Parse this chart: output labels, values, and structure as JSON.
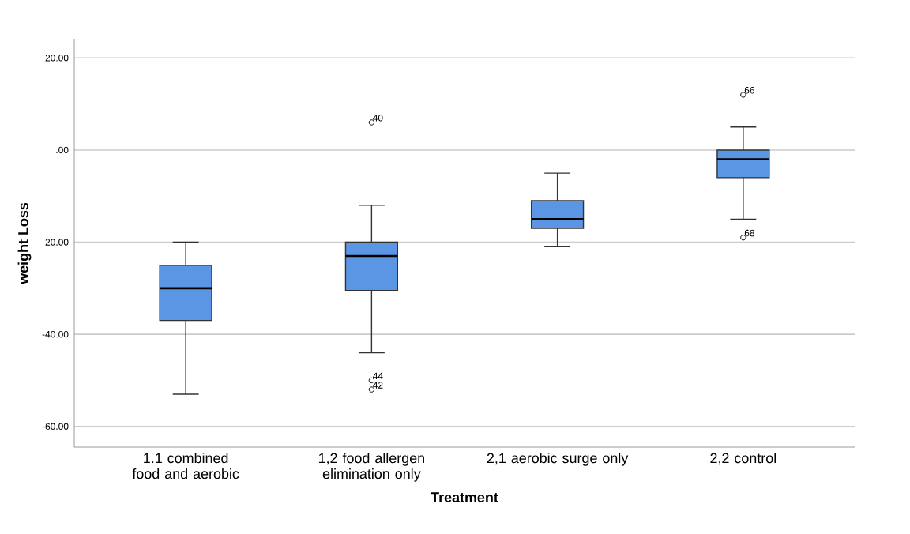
{
  "chart_data": {
    "type": "box",
    "xlabel": "Treatment",
    "ylabel": "weight Loss",
    "categories": [
      "1.1 combined food and aerobic",
      "1,2 food allergen elimination only",
      "2,1 aerobic surge only",
      "2,2 control"
    ],
    "color": "#5a96e3",
    "boxes": [
      {
        "low": -53,
        "q1": -37,
        "median": -30,
        "q3": -25,
        "high": -20
      },
      {
        "low": -44,
        "q1": -30.5,
        "median": -23,
        "q3": -20,
        "high": -12,
        "outliers": [
          6,
          -50,
          -52
        ]
      },
      {
        "low": -21,
        "q1": -17,
        "median": -15,
        "q3": -11,
        "high": -5
      },
      {
        "low": -15,
        "q1": -6,
        "median": -2,
        "q3": 0,
        "high": 5,
        "outliers": [
          12,
          -19
        ]
      }
    ],
    "ylim": [
      -64.5,
      24
    ],
    "yticks": [
      {
        "value": 20,
        "label": "20.00"
      },
      {
        "value": 0,
        "label": ".00"
      },
      {
        "value": -20,
        "label": "-20.00"
      },
      {
        "value": -40,
        "label": "-40.00"
      },
      {
        "value": -60,
        "label": "-60.00"
      }
    ],
    "grid": "y",
    "marker": "circle",
    "annotations": [
      "40",
      "44",
      "42",
      "66",
      "68"
    ]
  }
}
